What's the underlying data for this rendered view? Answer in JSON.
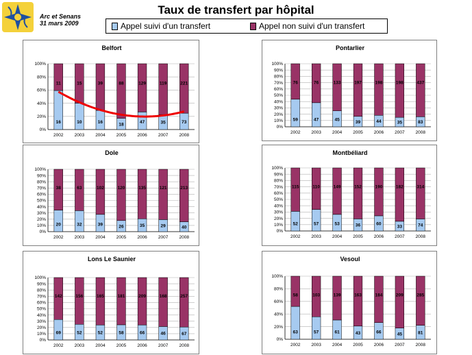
{
  "header": {
    "org_line1": "Arc et Senans",
    "org_line2": "31 mars 2009",
    "title": "Taux de transfert par hôpital"
  },
  "legend": {
    "transfer_label": "Appel suivi d'un transfert",
    "no_transfer_label": "Appel non suivi d'un transfert"
  },
  "colors": {
    "transfer": "#a6caf0",
    "no_transfer": "#993366",
    "trend": "#ee0000"
  },
  "chart_data": [
    {
      "type": "bar",
      "stacked": "percent",
      "title": "Belfort",
      "categories": [
        "2002",
        "2003",
        "2004",
        "2005",
        "2006",
        "2007",
        "2008"
      ],
      "series": [
        {
          "name": "Appel suivi d'un transfert",
          "values": [
            16,
            10,
            16,
            18,
            47,
            35,
            73
          ]
        },
        {
          "name": "Appel non suivi d'un transfert",
          "values": [
            11,
            15,
            39,
            88,
            129,
            119,
            221
          ]
        }
      ],
      "yticks": [
        "0%",
        "20%",
        "40%",
        "60%",
        "80%",
        "100%"
      ],
      "trendline": true
    },
    {
      "type": "bar",
      "stacked": "percent",
      "title": "Pontarlier",
      "categories": [
        "2002",
        "2003",
        "2004",
        "2005",
        "2006",
        "2007",
        "2008"
      ],
      "series": [
        {
          "name": "Appel suivi d'un transfert",
          "values": [
            59,
            47,
            45,
            39,
            44,
            35,
            83
          ]
        },
        {
          "name": "Appel non suivi d'un transfert",
          "values": [
            76,
            76,
            133,
            197,
            198,
            198,
            437
          ]
        }
      ],
      "yticks": [
        "0%",
        "10%",
        "20%",
        "30%",
        "40%",
        "50%",
        "60%",
        "70%",
        "80%",
        "90%",
        "100%"
      ]
    },
    {
      "type": "bar",
      "stacked": "percent",
      "title": "Dole",
      "categories": [
        "2002",
        "2003",
        "2004",
        "2005",
        "2006",
        "2007",
        "2008"
      ],
      "series": [
        {
          "name": "Appel suivi d'un transfert",
          "values": [
            20,
            32,
            39,
            26,
            35,
            29,
            40
          ]
        },
        {
          "name": "Appel non suivi d'un transfert",
          "values": [
            38,
            63,
            102,
            120,
            135,
            121,
            213
          ]
        }
      ],
      "yticks": [
        "0%",
        "10%",
        "20%",
        "30%",
        "40%",
        "50%",
        "60%",
        "70%",
        "80%",
        "90%",
        "100%"
      ]
    },
    {
      "type": "bar",
      "stacked": "percent",
      "title": "Montbéliard",
      "categories": [
        "2002",
        "2003",
        "2004",
        "2005",
        "2006",
        "2007",
        "2008"
      ],
      "series": [
        {
          "name": "Appel suivi d'un transfert",
          "values": [
            52,
            57,
            53,
            36,
            60,
            33,
            74
          ]
        },
        {
          "name": "Appel non suivi d'un transfert",
          "values": [
            115,
            110,
            149,
            152,
            190,
            182,
            314
          ]
        }
      ],
      "yticks": [
        "0%",
        "10%",
        "20%",
        "30%",
        "40%",
        "50%",
        "60%",
        "70%",
        "80%",
        "90%",
        "100%"
      ]
    },
    {
      "type": "bar",
      "stacked": "percent",
      "title": "Lons Le Saunier",
      "categories": [
        "2002",
        "2003",
        "2004",
        "2005",
        "2006",
        "2007",
        "2008"
      ],
      "series": [
        {
          "name": "Appel suivi d'un transfert",
          "values": [
            69,
            52,
            52,
            58,
            66,
            46,
            67
          ]
        },
        {
          "name": "Appel non suivi d'un transfert",
          "values": [
            142,
            156,
            165,
            181,
            209,
            168,
            257
          ]
        }
      ],
      "yticks": [
        "0%",
        "10%",
        "20%",
        "30%",
        "40%",
        "50%",
        "60%",
        "70%",
        "80%",
        "90%",
        "100%"
      ]
    },
    {
      "type": "bar",
      "stacked": "percent",
      "title": "Vesoul",
      "categories": [
        "2002",
        "2003",
        "2004",
        "2005",
        "2006",
        "2007",
        "2008"
      ],
      "series": [
        {
          "name": "Appel suivi d'un transfert",
          "values": [
            63,
            57,
            61,
            43,
            66,
            45,
            81
          ]
        },
        {
          "name": "Appel non suivi d'un transfert",
          "values": [
            58,
            103,
            139,
            163,
            184,
            209,
            285
          ]
        }
      ],
      "yticks": [
        "0%",
        "20%",
        "40%",
        "60%",
        "80%",
        "100%"
      ]
    }
  ]
}
